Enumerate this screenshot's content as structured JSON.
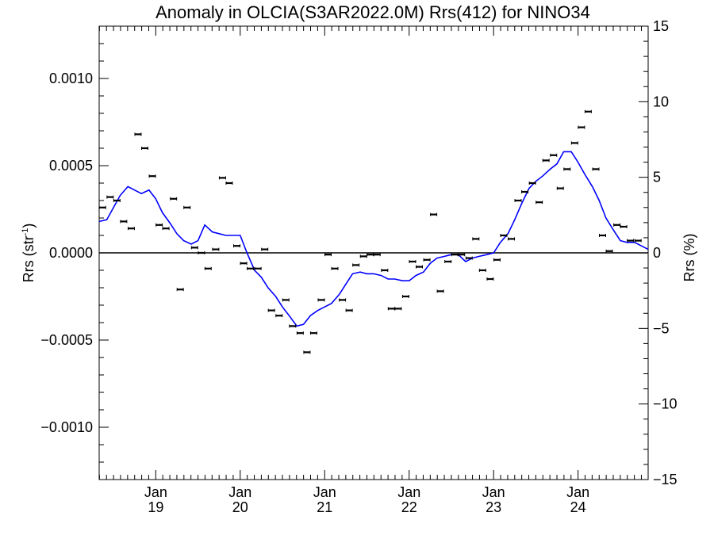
{
  "chart_data": {
    "type": "scatter",
    "title": "Anomaly in OLCIA(S3AR2022.0M) Rrs(412) for NINO34",
    "ylabel": "Rrs (str",
    "ylabel_sup": "-1",
    "ylabel_close": ")",
    "y2label": "Rrs (%)",
    "ylim": [
      -0.0013,
      0.0013
    ],
    "y2lim": [
      -15,
      15
    ],
    "xlim": [
      2018.33,
      2024.83
    ],
    "yticks": [
      {
        "v": -0.001,
        "label": "−0.0010"
      },
      {
        "v": -0.0005,
        "label": "−0.0005"
      },
      {
        "v": 0.0,
        "label": "0.0000"
      },
      {
        "v": 0.0005,
        "label": "0.0005"
      },
      {
        "v": 0.001,
        "label": "0.0010"
      }
    ],
    "y2ticks": [
      {
        "v": -15,
        "label": "−15"
      },
      {
        "v": -10,
        "label": "−10"
      },
      {
        "v": -5,
        "label": "−5"
      },
      {
        "v": 0,
        "label": "0"
      },
      {
        "v": 5,
        "label": "5"
      },
      {
        "v": 10,
        "label": "10"
      },
      {
        "v": 15,
        "label": "15"
      }
    ],
    "xticks": [
      {
        "v": 2019.0,
        "label1": "Jan",
        "label2": "19"
      },
      {
        "v": 2020.0,
        "label1": "Jan",
        "label2": "20"
      },
      {
        "v": 2021.0,
        "label1": "Jan",
        "label2": "21"
      },
      {
        "v": 2022.0,
        "label1": "Jan",
        "label2": "22"
      },
      {
        "v": 2023.0,
        "label1": "Jan",
        "label2": "23"
      },
      {
        "v": 2024.0,
        "label1": "Jan",
        "label2": "24"
      }
    ],
    "grid": false,
    "series": [
      {
        "kind": "points",
        "color": "#000000",
        "x": [
          2018.37,
          2018.46,
          2018.54,
          2018.62,
          2018.71,
          2018.79,
          2018.87,
          2018.96,
          2019.04,
          2019.12,
          2019.21,
          2019.29,
          2019.37,
          2019.46,
          2019.54,
          2019.62,
          2019.71,
          2019.79,
          2019.87,
          2019.96,
          2020.04,
          2020.12,
          2020.21,
          2020.29,
          2020.37,
          2020.46,
          2020.54,
          2020.62,
          2020.71,
          2020.79,
          2020.87,
          2020.96,
          2021.04,
          2021.12,
          2021.21,
          2021.29,
          2021.37,
          2021.46,
          2021.54,
          2021.62,
          2021.71,
          2021.79,
          2021.87,
          2021.96,
          2022.04,
          2022.12,
          2022.21,
          2022.29,
          2022.37,
          2022.46,
          2022.54,
          2022.62,
          2022.71,
          2022.79,
          2022.87,
          2022.96,
          2023.04,
          2023.12,
          2023.21,
          2023.29,
          2023.37,
          2023.46,
          2023.54,
          2023.62,
          2023.71,
          2023.79,
          2023.87,
          2023.96,
          2024.04,
          2024.12,
          2024.21,
          2024.29,
          2024.37,
          2024.46,
          2024.54,
          2024.62,
          2024.71
        ],
        "y": [
          0.00026,
          0.00032,
          0.0003,
          0.00018,
          0.00014,
          0.00068,
          0.0006,
          0.00044,
          0.00016,
          0.00014,
          0.00031,
          -0.00021,
          0.00026,
          3e-05,
          0.0,
          -9e-05,
          2e-05,
          0.00043,
          0.0004,
          4e-05,
          -6e-05,
          -9e-05,
          -9e-05,
          2e-05,
          -0.00033,
          -0.00036,
          -0.00027,
          -0.00042,
          -0.00046,
          -0.00057,
          -0.00046,
          -0.00027,
          -1e-05,
          -9e-05,
          -0.00027,
          -0.00033,
          -7e-05,
          -2e-05,
          -1e-05,
          -1e-05,
          -0.0001,
          -0.00032,
          -0.00032,
          -0.00025,
          -5e-05,
          -8e-05,
          -4e-05,
          0.00022,
          -0.00022,
          -5e-05,
          -1e-05,
          -1e-05,
          -3e-05,
          8e-05,
          -0.0001,
          -0.00015,
          -4e-05,
          0.0001,
          8e-05,
          0.0003,
          0.00035,
          0.0004,
          0.00029,
          0.00053,
          0.00056,
          0.00037,
          0.00048,
          0.00063,
          0.00072,
          0.00081,
          0.00048,
          0.0001,
          1e-05,
          0.00016,
          0.00015,
          7e-05,
          7e-05
        ]
      },
      {
        "kind": "line",
        "color": "#0000ff",
        "x": [
          2018.33,
          2018.42,
          2018.5,
          2018.58,
          2018.67,
          2018.75,
          2018.83,
          2018.92,
          2019.0,
          2019.08,
          2019.17,
          2019.25,
          2019.33,
          2019.42,
          2019.5,
          2019.58,
          2019.67,
          2019.75,
          2019.83,
          2019.92,
          2020.0,
          2020.08,
          2020.17,
          2020.25,
          2020.33,
          2020.42,
          2020.5,
          2020.58,
          2020.67,
          2020.75,
          2020.83,
          2020.92,
          2021.0,
          2021.08,
          2021.17,
          2021.25,
          2021.33,
          2021.42,
          2021.5,
          2021.58,
          2021.67,
          2021.75,
          2021.83,
          2021.92,
          2022.0,
          2022.08,
          2022.17,
          2022.25,
          2022.33,
          2022.42,
          2022.5,
          2022.58,
          2022.67,
          2022.75,
          2022.83,
          2022.92,
          2023.0,
          2023.08,
          2023.17,
          2023.25,
          2023.33,
          2023.42,
          2023.5,
          2023.58,
          2023.67,
          2023.75,
          2023.83,
          2023.92,
          2024.0,
          2024.08,
          2024.17,
          2024.25,
          2024.33,
          2024.42,
          2024.5,
          2024.58,
          2024.67,
          2024.75,
          2024.83
        ],
        "y": [
          0.00018,
          0.00019,
          0.00026,
          0.00033,
          0.00038,
          0.00036,
          0.00034,
          0.00036,
          0.00031,
          0.00023,
          0.00017,
          0.00011,
          7e-05,
          5e-05,
          7e-05,
          0.00016,
          0.00012,
          0.00011,
          0.0001,
          0.0001,
          0.0001,
          0.0,
          -0.0001,
          -0.00014,
          -0.0002,
          -0.00025,
          -0.00031,
          -0.00036,
          -0.00042,
          -0.00041,
          -0.00036,
          -0.00033,
          -0.00031,
          -0.00029,
          -0.00024,
          -0.00018,
          -0.00012,
          -0.00011,
          -0.00012,
          -0.00012,
          -0.00013,
          -0.00015,
          -0.00015,
          -0.00016,
          -0.00016,
          -0.00013,
          -0.00011,
          -6e-05,
          -3e-05,
          -2e-05,
          -1e-05,
          -1e-05,
          -5e-05,
          -3e-05,
          -2e-05,
          -1e-05,
          0.0,
          6e-05,
          0.00011,
          0.00019,
          0.00028,
          0.00037,
          0.00041,
          0.00044,
          0.00048,
          0.00051,
          0.00058,
          0.00058,
          0.00052,
          0.00045,
          0.00038,
          0.0003,
          0.0002,
          0.00013,
          7e-05,
          6e-05,
          6e-05,
          4e-05,
          2e-05
        ]
      }
    ]
  }
}
